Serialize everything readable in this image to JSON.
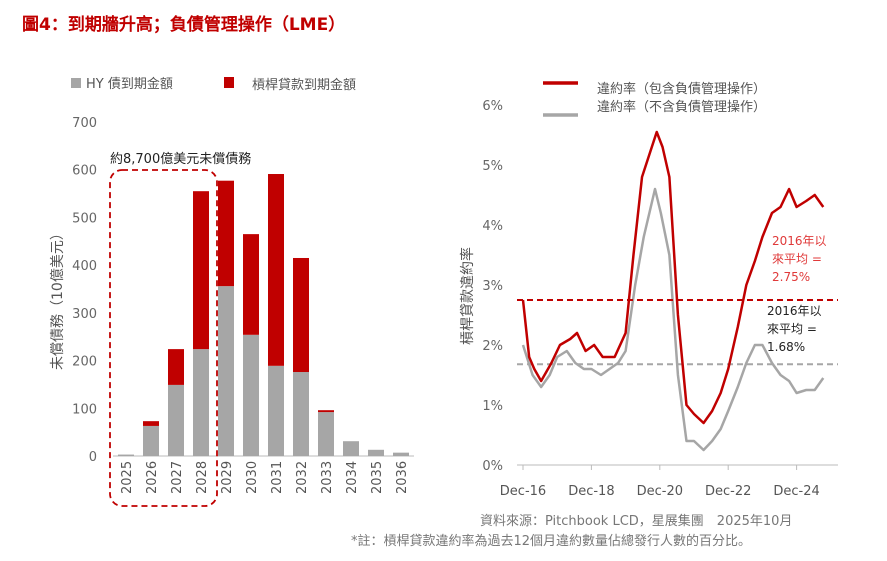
{
  "title": "圖4：到期牆升高；負債管理操作（LME）",
  "source": "資料來源：Pitchbook LCD，星展集團　2025年10月",
  "note": "*註：槓桿貸款違約率為過去12個月違約數量佔總發行人數的百分比。",
  "colors": {
    "red": "#c00000",
    "gray": "#a6a6a6",
    "title": "#c00000"
  },
  "chart_data": [
    {
      "type": "bar",
      "stacked": true,
      "ylabel": "未償債務（10億美元）",
      "ylim": [
        0,
        700
      ],
      "yticks": [
        0,
        100,
        200,
        300,
        400,
        500,
        600,
        700
      ],
      "categories": [
        "2025",
        "2026",
        "2027",
        "2028",
        "2029",
        "2030",
        "2031",
        "2032",
        "2033",
        "2034",
        "2035",
        "2036"
      ],
      "series": [
        {
          "name": "HY 債到期金額",
          "values": [
            3,
            63,
            149,
            224,
            356,
            254,
            189,
            176,
            92,
            31,
            13,
            7
          ]
        },
        {
          "name": "槓桿貸款到期金額",
          "values": [
            0,
            10,
            75,
            331,
            221,
            211,
            402,
            239,
            4,
            0,
            0,
            0
          ]
        }
      ],
      "annotation": "約8,700億美元未償債務",
      "legend": "top"
    },
    {
      "type": "line",
      "ylabel": "槓桿貸款違約率",
      "ylim": [
        0,
        6
      ],
      "yticks": [
        "0%",
        "1%",
        "2%",
        "3%",
        "4%",
        "5%",
        "6%"
      ],
      "xticks": [
        "Dec-16",
        "Dec-18",
        "Dec-20",
        "Dec-22",
        "Dec-24"
      ],
      "series": [
        {
          "name": "違約率（包含負債管理操作）",
          "points": [
            [
              2016.92,
              2.75
            ],
            [
              2017.1,
              1.8
            ],
            [
              2017.25,
              1.6
            ],
            [
              2017.45,
              1.4
            ],
            [
              2017.75,
              1.7
            ],
            [
              2018.0,
              2.0
            ],
            [
              2018.3,
              2.1
            ],
            [
              2018.5,
              2.2
            ],
            [
              2018.75,
              1.9
            ],
            [
              2019.0,
              2.0
            ],
            [
              2019.25,
              1.8
            ],
            [
              2019.6,
              1.8
            ],
            [
              2019.92,
              2.2
            ],
            [
              2020.15,
              3.5
            ],
            [
              2020.4,
              4.8
            ],
            [
              2020.83,
              5.55
            ],
            [
              2021.0,
              5.3
            ],
            [
              2021.2,
              4.8
            ],
            [
              2021.45,
              2.5
            ],
            [
              2021.7,
              1.0
            ],
            [
              2021.92,
              0.85
            ],
            [
              2022.2,
              0.7
            ],
            [
              2022.45,
              0.9
            ],
            [
              2022.7,
              1.2
            ],
            [
              2022.92,
              1.6
            ],
            [
              2023.2,
              2.3
            ],
            [
              2023.45,
              3.0
            ],
            [
              2023.7,
              3.4
            ],
            [
              2023.92,
              3.8
            ],
            [
              2024.2,
              4.2
            ],
            [
              2024.45,
              4.3
            ],
            [
              2024.7,
              4.6
            ],
            [
              2024.92,
              4.3
            ],
            [
              2025.2,
              4.4
            ],
            [
              2025.45,
              4.5
            ],
            [
              2025.7,
              4.3
            ]
          ],
          "mean": 2.75,
          "mean_label": "2016年以來平均 = 2.75%"
        },
        {
          "name": "違約率（不含負債管理操作）",
          "points": [
            [
              2016.92,
              2.0
            ],
            [
              2017.2,
              1.5
            ],
            [
              2017.45,
              1.3
            ],
            [
              2017.7,
              1.5
            ],
            [
              2017.92,
              1.8
            ],
            [
              2018.2,
              1.9
            ],
            [
              2018.45,
              1.7
            ],
            [
              2018.7,
              1.6
            ],
            [
              2018.92,
              1.6
            ],
            [
              2019.2,
              1.5
            ],
            [
              2019.45,
              1.6
            ],
            [
              2019.7,
              1.7
            ],
            [
              2019.92,
              1.9
            ],
            [
              2020.2,
              3.0
            ],
            [
              2020.45,
              3.8
            ],
            [
              2020.78,
              4.6
            ],
            [
              2020.95,
              4.2
            ],
            [
              2021.2,
              3.5
            ],
            [
              2021.45,
              1.5
            ],
            [
              2021.7,
              0.4
            ],
            [
              2021.92,
              0.4
            ],
            [
              2022.2,
              0.25
            ],
            [
              2022.45,
              0.4
            ],
            [
              2022.7,
              0.6
            ],
            [
              2022.92,
              0.9
            ],
            [
              2023.2,
              1.3
            ],
            [
              2023.45,
              1.7
            ],
            [
              2023.7,
              2.0
            ],
            [
              2023.92,
              2.0
            ],
            [
              2024.2,
              1.7
            ],
            [
              2024.45,
              1.5
            ],
            [
              2024.7,
              1.4
            ],
            [
              2024.92,
              1.2
            ],
            [
              2025.2,
              1.25
            ],
            [
              2025.45,
              1.25
            ],
            [
              2025.7,
              1.45
            ]
          ],
          "mean": 1.68,
          "mean_label": "2016年以來平均 = 1.68%"
        }
      ],
      "legend": "top"
    }
  ]
}
